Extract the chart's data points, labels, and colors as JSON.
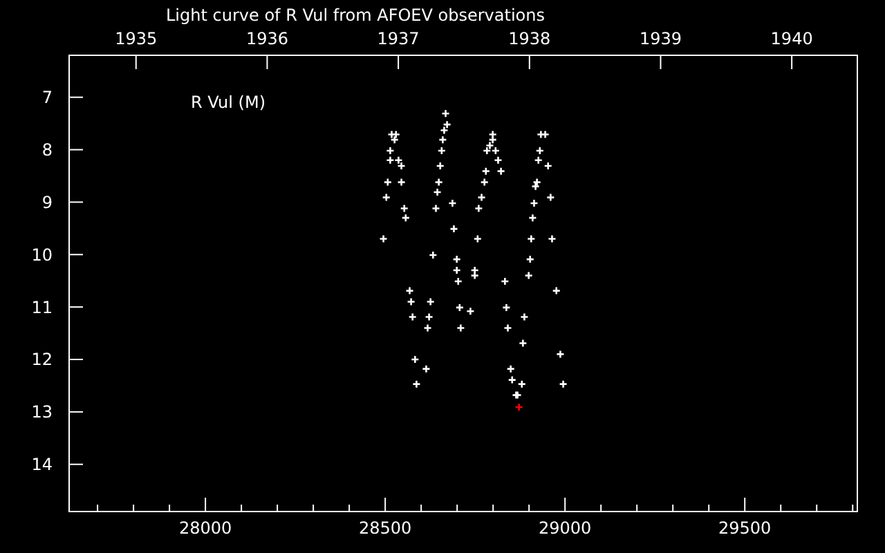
{
  "chart_data": {
    "type": "scatter",
    "title": "Light curve of R Vul from AFOEV observations",
    "annotations": [
      "R Vul (M)"
    ],
    "marker": "cross",
    "grid": false,
    "xlim": [
      27621,
      29813
    ],
    "ylim": [
      14.9,
      6.2
    ],
    "xticks": [
      {
        "value": 27700,
        "label": null
      },
      {
        "value": 27800,
        "label": null
      },
      {
        "value": 27900,
        "label": null
      },
      28000,
      {
        "value": 28100,
        "label": null
      },
      {
        "value": 28200,
        "label": null
      },
      {
        "value": 28300,
        "label": null
      },
      {
        "value": 28400,
        "label": null
      },
      28500,
      {
        "value": 28600,
        "label": null
      },
      {
        "value": 28700,
        "label": null
      },
      {
        "value": 28800,
        "label": null
      },
      {
        "value": 28900,
        "label": null
      },
      29000,
      {
        "value": 29100,
        "label": null
      },
      {
        "value": 29200,
        "label": null
      },
      {
        "value": 29300,
        "label": null
      },
      {
        "value": 29400,
        "label": null
      },
      29500,
      {
        "value": 29600,
        "label": null
      },
      {
        "value": 29700,
        "label": null
      },
      {
        "value": 29800,
        "label": null
      }
    ],
    "yticks": [
      7,
      8,
      9,
      10,
      11,
      12,
      13,
      14
    ],
    "x2lim": [
      1934.49,
      1940.5
    ],
    "x2ticks": [
      1935,
      1936,
      1937,
      1938,
      1939,
      1940
    ],
    "series": [
      {
        "color": "#ffffff",
        "x": [
          28668,
          28672,
          28664,
          28660,
          28657,
          28653,
          28649,
          28645,
          28641,
          28687,
          28691,
          28518,
          28530,
          28526,
          28514,
          28514,
          28537,
          28545,
          28507,
          28545,
          28503,
          28553,
          28557,
          28495,
          28799,
          28799,
          28791,
          28783,
          28807,
          28814,
          28780,
          28822,
          28776,
          28768,
          28760,
          28757,
          28933,
          28945,
          28930,
          28926,
          28953,
          28922,
          28918,
          28960,
          28914,
          28910,
          28906,
          28964,
          28633,
          28699,
          28699,
          28749,
          28749,
          28703,
          28833,
          28903,
          28899,
          28568,
          28572,
          28626,
          28576,
          28622,
          28618,
          28707,
          28737,
          28710,
          28837,
          28887,
          28841,
          28976,
          28883,
          28987,
          28583,
          28614,
          28587,
          28849,
          28853,
          28880,
          28995,
          28864,
          28868
        ],
        "values": [
          7.31,
          7.52,
          7.63,
          7.81,
          8.02,
          8.31,
          8.62,
          8.81,
          9.12,
          9.02,
          9.51,
          7.71,
          7.71,
          7.81,
          8.02,
          8.2,
          8.2,
          8.31,
          8.62,
          8.62,
          8.91,
          9.12,
          9.3,
          9.7,
          7.71,
          7.81,
          7.92,
          8.02,
          8.02,
          8.2,
          8.41,
          8.41,
          8.62,
          8.91,
          9.12,
          9.7,
          7.71,
          7.71,
          8.02,
          8.2,
          8.31,
          8.62,
          8.7,
          8.91,
          9.02,
          9.3,
          9.7,
          9.7,
          10.01,
          10.09,
          10.3,
          10.3,
          10.4,
          10.51,
          10.51,
          10.09,
          10.4,
          10.69,
          10.9,
          10.9,
          11.19,
          11.19,
          11.4,
          11.01,
          11.08,
          11.4,
          11.01,
          11.19,
          11.4,
          10.69,
          11.69,
          11.9,
          12.0,
          12.18,
          12.47,
          12.18,
          12.39,
          12.47,
          12.47,
          12.68,
          12.68
        ]
      },
      {
        "color": "#ff0000",
        "x": [
          28872
        ],
        "values": [
          12.91
        ]
      }
    ]
  }
}
